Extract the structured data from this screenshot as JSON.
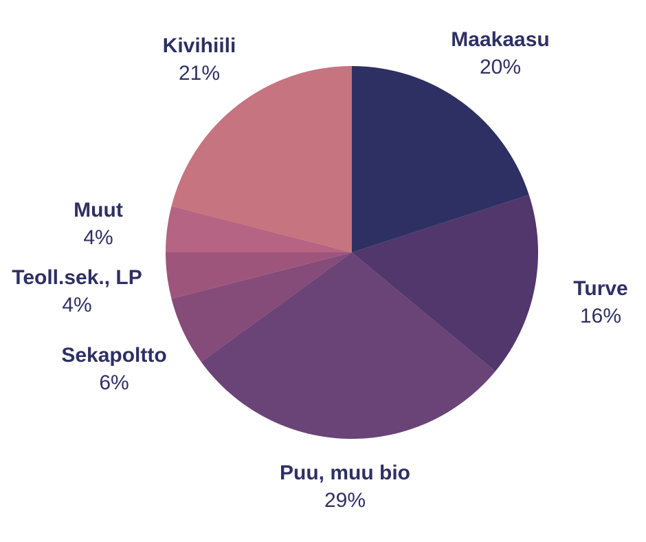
{
  "chart_data": {
    "type": "pie",
    "start_angle_deg": 0,
    "direction": "clockwise",
    "label_color": "#2e3063",
    "slices": [
      {
        "label": "Maakaasu",
        "value": 20,
        "value_label": "20%",
        "color": "#2e3063"
      },
      {
        "label": "Turve",
        "value": 16,
        "value_label": "16%",
        "color": "#51376c"
      },
      {
        "label": "Puu, muu bio",
        "value": 29,
        "value_label": "29%",
        "color": "#6a4476"
      },
      {
        "label": "Sekapoltto",
        "value": 6,
        "value_label": "6%",
        "color": "#854b79"
      },
      {
        "label": "Teoll.sek., LP",
        "value": 4,
        "value_label": "4%",
        "color": "#9e557c"
      },
      {
        "label": "Muut",
        "value": 4,
        "value_label": "4%",
        "color": "#b66483"
      },
      {
        "label": "Kivihiili",
        "value": 21,
        "value_label": "21%",
        "color": "#c6747f"
      }
    ]
  }
}
